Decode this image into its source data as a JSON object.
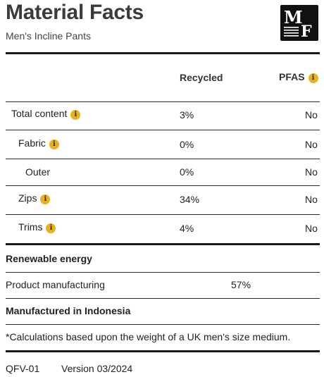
{
  "header": {
    "title": "Material Facts",
    "subtitle": "Men's Incline Pants",
    "logo_letters": [
      "M",
      "F"
    ]
  },
  "table": {
    "columns": {
      "recycled": "Recycled",
      "pfas": "PFAS"
    },
    "info_glyph": "i",
    "rows": [
      {
        "label": "Total content",
        "recycled": "3%",
        "pfas": "No",
        "info": true
      },
      {
        "label": "Fabric",
        "recycled": "0%",
        "pfas": "No",
        "info": true
      },
      {
        "label": "Outer",
        "recycled": "0%",
        "pfas": "No",
        "info": false
      },
      {
        "label": "Zips",
        "recycled": "34%",
        "pfas": "No",
        "info": true
      },
      {
        "label": "Trims",
        "recycled": "4%",
        "pfas": "No",
        "info": true
      }
    ]
  },
  "renewable": {
    "heading": "Renewable energy",
    "label": "Product manufacturing",
    "value": "57%"
  },
  "manufactured": "Manufactured in Indonesia",
  "footnote": "*Calculations based upon the weight of a UK men's size medium.",
  "footer": {
    "code": "QFV-01",
    "version": "Version 03/2024"
  },
  "colors": {
    "info_badge": "#e8b21c",
    "rule": "#1a1a1a",
    "logo_bg": "#111111"
  }
}
